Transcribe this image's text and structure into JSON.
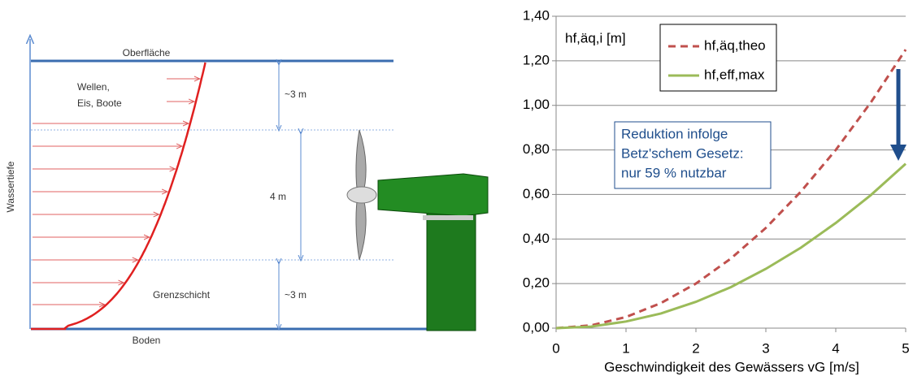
{
  "diagram": {
    "surface": "Oberfläche",
    "waves_1": "Wellen,",
    "waves_2": "Eis, Boote",
    "depth_top": "~3 m",
    "depth_axis": "Wassertiefe",
    "depth_mid": "4 m",
    "boundary_layer": "Grenzschicht",
    "depth_bottom": "~3 m",
    "bottom": "Boden"
  },
  "chart_data": {
    "type": "line",
    "y_label": "hf,äq,i [m]",
    "x_label": "Geschwindigkeit des Gewässers vG [m/s]",
    "annotation": [
      "Reduktion infolge",
      "Betz'schem Gesetz:",
      "nur 59 % nutzbar"
    ],
    "x": [
      0,
      0.5,
      1,
      1.5,
      2,
      2.5,
      3,
      3.5,
      4,
      4.5,
      5
    ],
    "series": [
      {
        "name": "hf,äq,theo",
        "color": "#c0504d",
        "dash": true,
        "values": [
          0,
          0.0125,
          0.05,
          0.1125,
          0.2,
          0.3125,
          0.45,
          0.6125,
          0.8,
          1.0125,
          1.25
        ]
      },
      {
        "name": "hf,eff,max",
        "color": "#9bbb59",
        "dash": false,
        "values": [
          0,
          0.007,
          0.03,
          0.066,
          0.118,
          0.184,
          0.266,
          0.361,
          0.472,
          0.597,
          0.738
        ]
      }
    ],
    "xlim": [
      0,
      5
    ],
    "xticks": [
      0,
      1,
      2,
      3,
      4,
      5
    ],
    "ylim": [
      0,
      1.4
    ],
    "yticks": [
      {
        "value": 0,
        "label": "0,00"
      },
      {
        "value": 0.2,
        "label": "0,20"
      },
      {
        "value": 0.4,
        "label": "0,40"
      },
      {
        "value": 0.6,
        "label": "0,60"
      },
      {
        "value": 0.8,
        "label": "0,80"
      },
      {
        "value": 1.0,
        "label": "1,00"
      },
      {
        "value": 1.2,
        "label": "1,20"
      },
      {
        "value": 1.4,
        "label": "1,40"
      }
    ],
    "grid": true
  }
}
